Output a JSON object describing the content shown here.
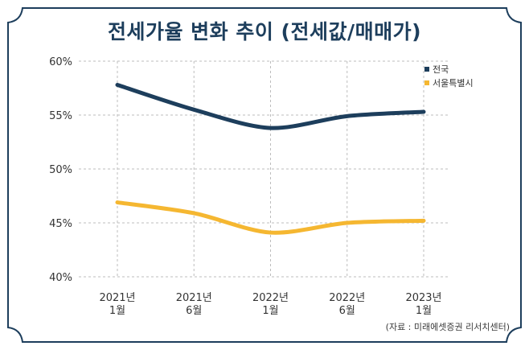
{
  "chart_data": {
    "type": "line",
    "title": "전세가율 변화 추이 (전세값/매매가)",
    "categories": [
      "2021년\n1월",
      "2021년\n6월",
      "2022년\n1월",
      "2022년\n6월",
      "2023년\n1월"
    ],
    "series": [
      {
        "name": "전국",
        "color": "#1d3e5c",
        "values": [
          57.8,
          55.5,
          53.8,
          54.9,
          55.3
        ]
      },
      {
        "name": "서울특별시",
        "color": "#f5b731",
        "values": [
          46.9,
          45.9,
          44.1,
          45.0,
          45.2
        ]
      }
    ],
    "ylim": [
      40,
      60
    ],
    "yticks": [
      "60%",
      "55%",
      "50%",
      "45%",
      "40%"
    ],
    "xlabel": "",
    "ylabel": "",
    "grid": true,
    "legend": "top-right",
    "source": "(자료 : 미래에셋증권 리서치센터)"
  },
  "colors": {
    "title": "#1d3e5c",
    "frame": "#1d3e5c",
    "grid": "#bdbdbd"
  }
}
